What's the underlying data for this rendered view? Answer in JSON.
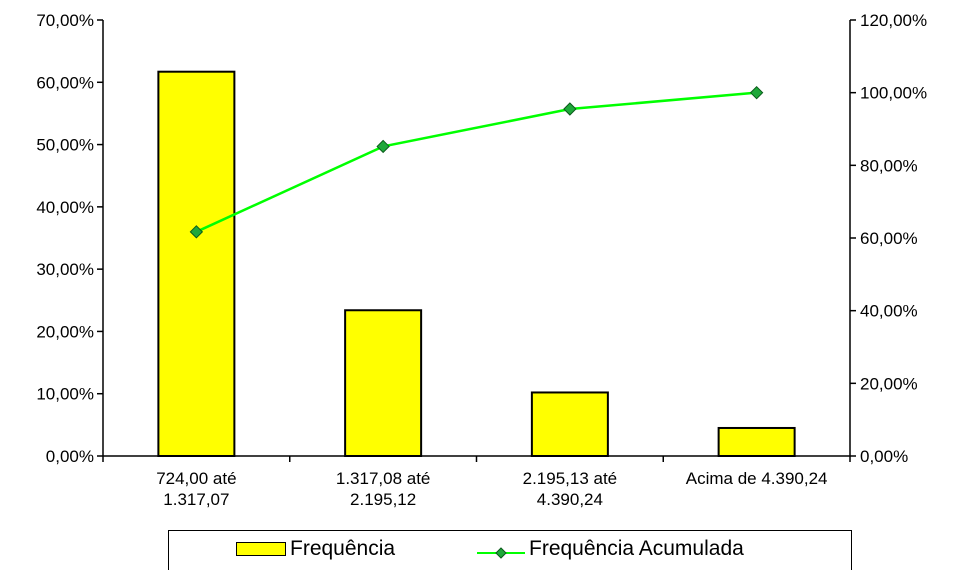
{
  "chart_data": {
    "type": "bar",
    "categories": [
      [
        "724,00 até",
        "1.317,07"
      ],
      [
        "1.317,08 até",
        "2.195,12"
      ],
      [
        "2.195,13 até",
        "4.390,24"
      ],
      [
        "Acima de 4.390,24"
      ]
    ],
    "series": [
      {
        "name": "Frequência",
        "type": "bar",
        "axis": "left",
        "color": "#ffff00",
        "values": [
          61.7,
          23.4,
          10.2,
          4.5
        ]
      },
      {
        "name": "Frequência Acumulada",
        "type": "line",
        "axis": "right",
        "color": "#00ff00",
        "marker_color": "#1fa83a",
        "values": [
          61.7,
          85.2,
          95.5,
          100.0
        ]
      }
    ],
    "y_left": {
      "ylim": [
        0,
        70
      ],
      "ticks": [
        "0,00%",
        "10,00%",
        "20,00%",
        "30,00%",
        "40,00%",
        "50,00%",
        "60,00%",
        "70,00%"
      ]
    },
    "y_right": {
      "ylim": [
        0,
        120
      ],
      "ticks": [
        "0,00%",
        "20,00%",
        "40,00%",
        "60,00%",
        "80,00%",
        "100,00%",
        "120,00%"
      ]
    },
    "legend_position": "bottom",
    "grid": false
  },
  "legend": {
    "bar_label": "Frequência",
    "line_label": "Frequência Acumulada"
  }
}
